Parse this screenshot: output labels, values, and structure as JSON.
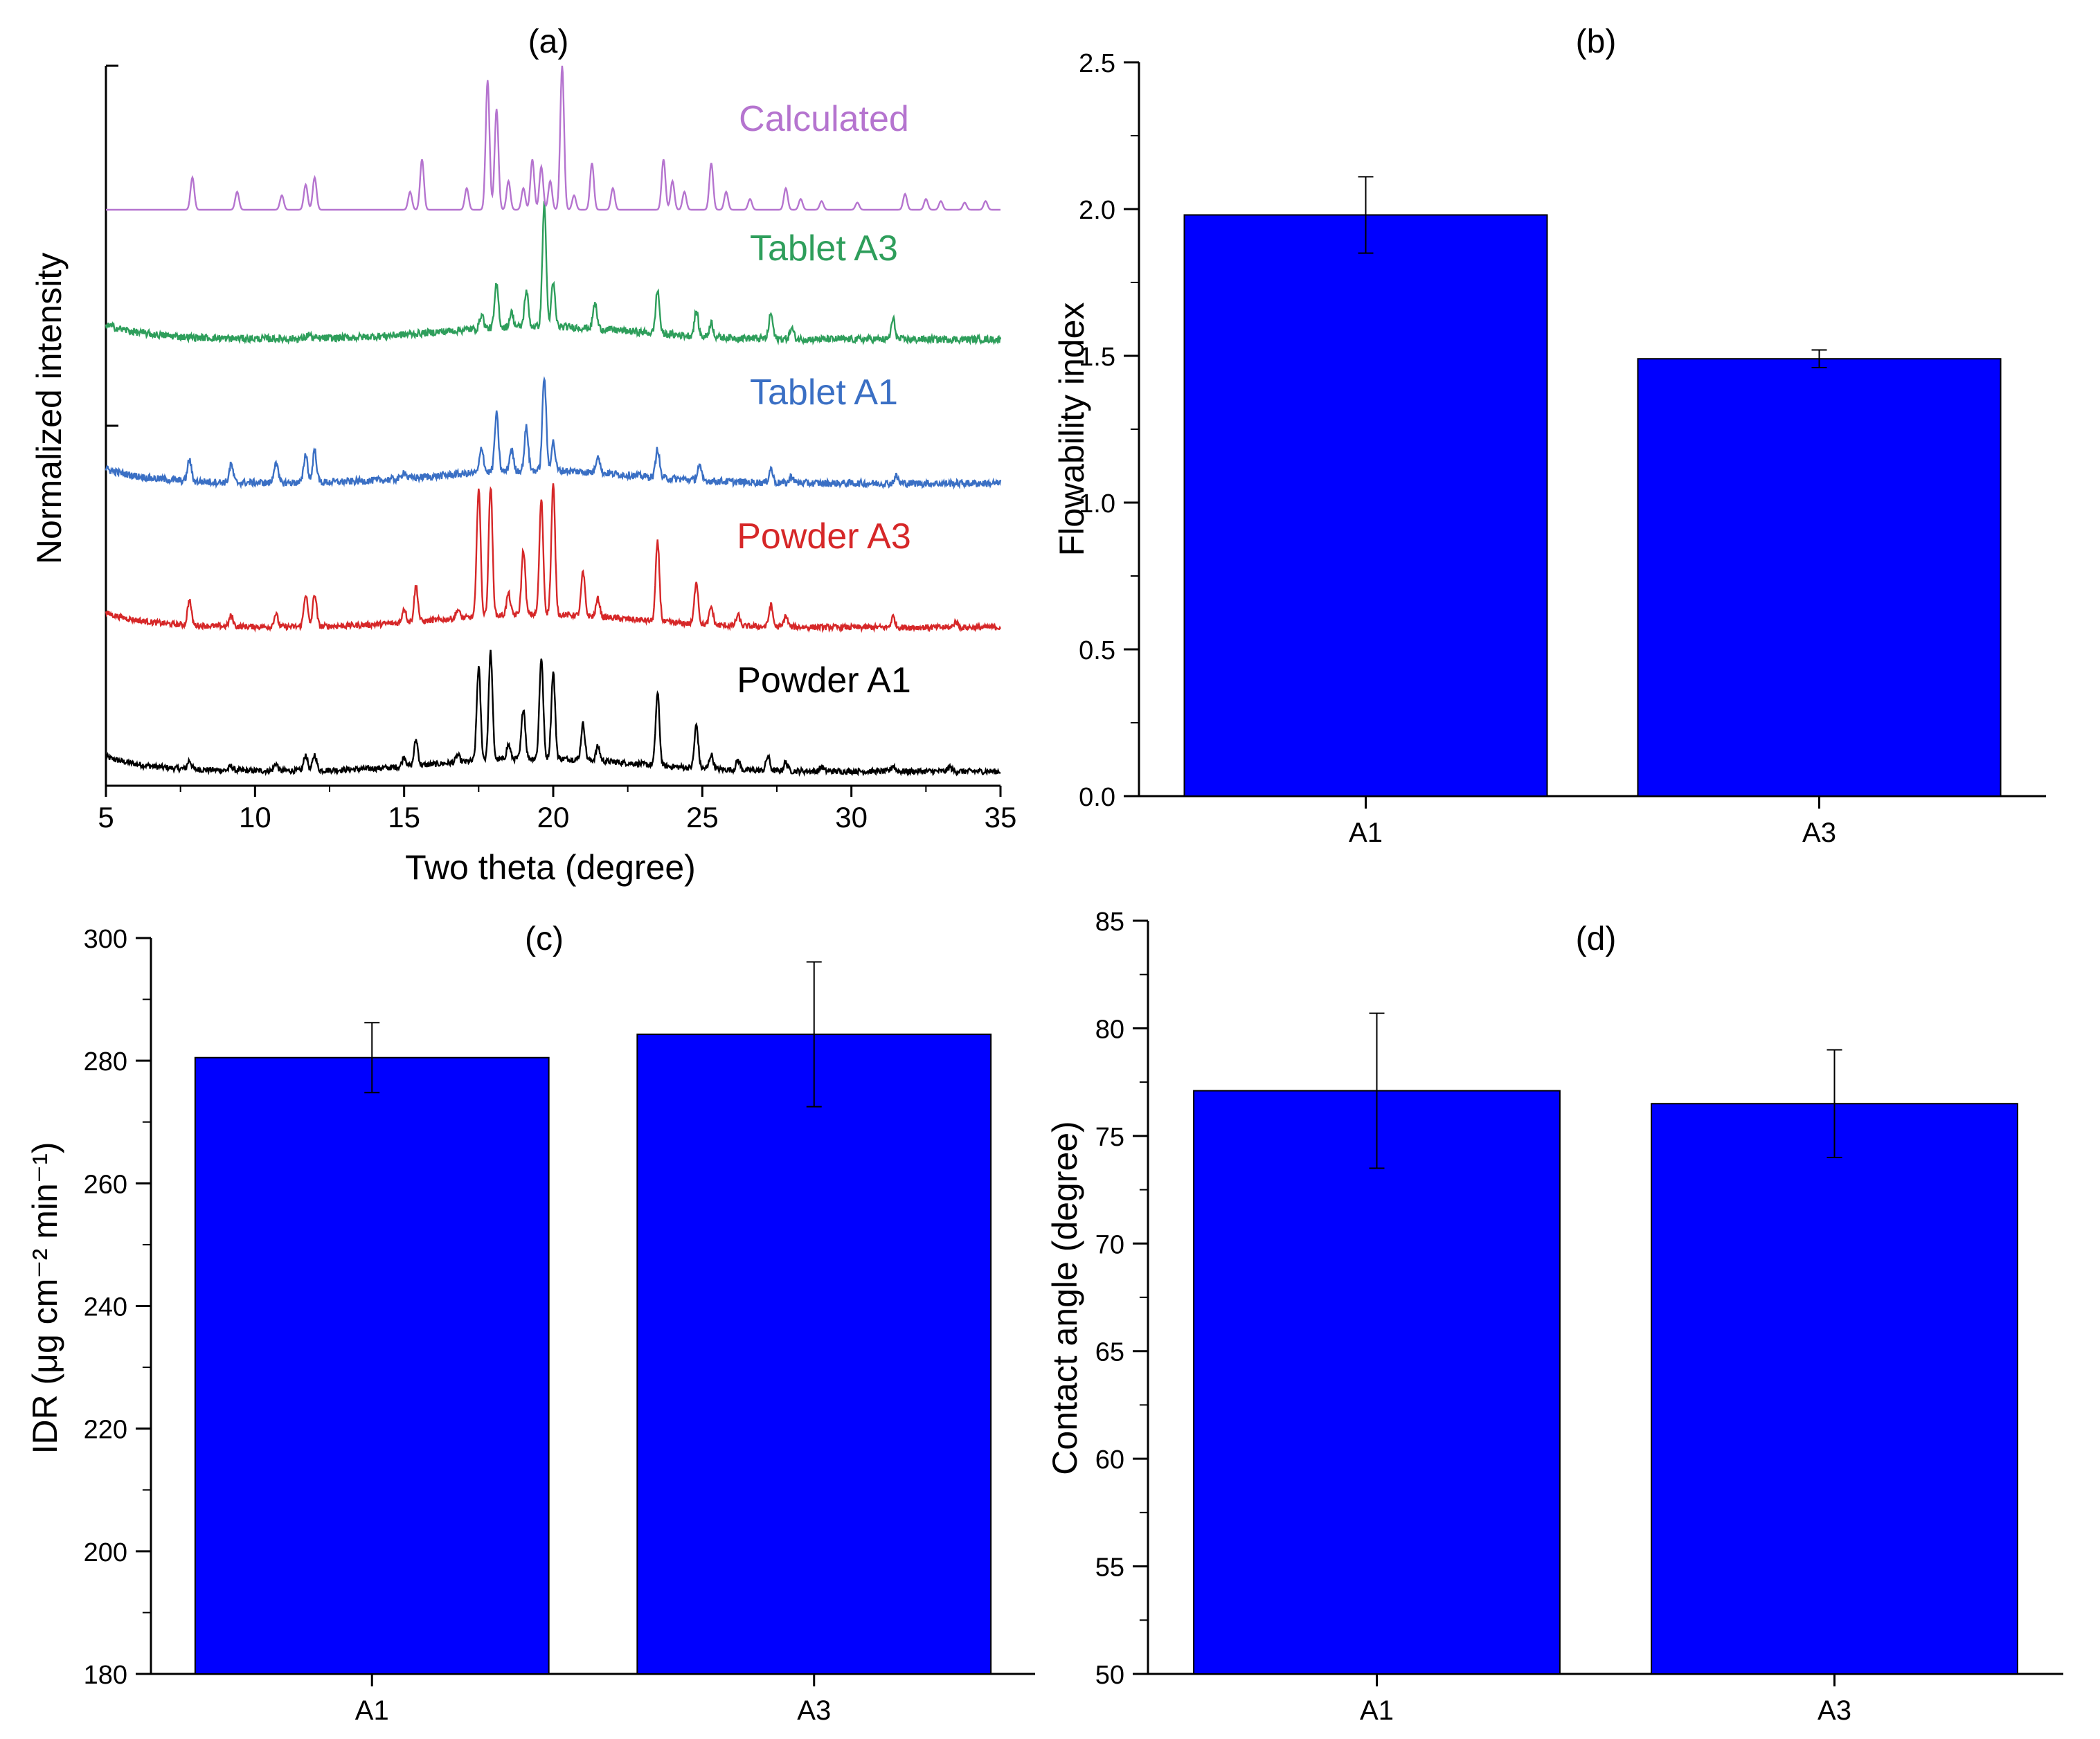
{
  "panels": {
    "a": {
      "label": "(a)"
    },
    "b": {
      "label": "(b)"
    },
    "c": {
      "label": "(c)"
    },
    "d": {
      "label": "(d)"
    }
  },
  "chart_data": [
    {
      "type": "line",
      "panel": "(a)",
      "xlabel": "Two theta (degree)",
      "ylabel": "Normalized intensity",
      "xlim": [
        5,
        35
      ],
      "xticks": [
        "5",
        "10",
        "15",
        "20",
        "25",
        "30",
        "35"
      ],
      "yticks_labeled": false,
      "series": [
        {
          "name": "Powder A1",
          "color": "#000000",
          "baseline": 0.02,
          "noise": 0.004,
          "peaks": [
            [
              7.8,
              0.012
            ],
            [
              9.2,
              0.006
            ],
            [
              10.7,
              0.01
            ],
            [
              11.7,
              0.022
            ],
            [
              12.0,
              0.022
            ],
            [
              15.0,
              0.014
            ],
            [
              15.4,
              0.036
            ],
            [
              16.8,
              0.01
            ],
            [
              17.5,
              0.13
            ],
            [
              17.9,
              0.15
            ],
            [
              18.5,
              0.02
            ],
            [
              19.0,
              0.07
            ],
            [
              19.6,
              0.14
            ],
            [
              20.0,
              0.12
            ],
            [
              21.0,
              0.05
            ],
            [
              21.5,
              0.02
            ],
            [
              23.5,
              0.1
            ],
            [
              24.8,
              0.06
            ],
            [
              25.3,
              0.02
            ],
            [
              26.2,
              0.014
            ],
            [
              27.2,
              0.02
            ],
            [
              27.8,
              0.012
            ],
            [
              29.0,
              0.006
            ],
            [
              31.4,
              0.008
            ],
            [
              33.3,
              0.006
            ]
          ]
        },
        {
          "name": "Powder A3",
          "color": "#d62728",
          "baseline": 0.22,
          "noise": 0.004,
          "peaks": [
            [
              7.8,
              0.035
            ],
            [
              9.2,
              0.015
            ],
            [
              10.7,
              0.018
            ],
            [
              11.7,
              0.045
            ],
            [
              12.0,
              0.045
            ],
            [
              15.0,
              0.02
            ],
            [
              15.4,
              0.05
            ],
            [
              16.8,
              0.012
            ],
            [
              17.5,
              0.18
            ],
            [
              17.9,
              0.18
            ],
            [
              18.5,
              0.03
            ],
            [
              19.0,
              0.09
            ],
            [
              19.6,
              0.16
            ],
            [
              20.0,
              0.18
            ],
            [
              21.0,
              0.06
            ],
            [
              21.5,
              0.025
            ],
            [
              23.5,
              0.11
            ],
            [
              24.8,
              0.06
            ],
            [
              25.3,
              0.025
            ],
            [
              26.2,
              0.015
            ],
            [
              27.3,
              0.03
            ],
            [
              27.8,
              0.015
            ],
            [
              31.4,
              0.015
            ],
            [
              33.5,
              0.008
            ]
          ]
        },
        {
          "name": "Tablet A1",
          "color": "#3a6fc4",
          "baseline": 0.42,
          "noise": 0.005,
          "peaks": [
            [
              7.8,
              0.03
            ],
            [
              9.2,
              0.025
            ],
            [
              10.7,
              0.03
            ],
            [
              11.7,
              0.04
            ],
            [
              12.0,
              0.045
            ],
            [
              15.0,
              0.01
            ],
            [
              17.6,
              0.035
            ],
            [
              18.1,
              0.08
            ],
            [
              18.6,
              0.03
            ],
            [
              19.1,
              0.06
            ],
            [
              19.7,
              0.13
            ],
            [
              20.0,
              0.04
            ],
            [
              21.5,
              0.025
            ],
            [
              23.5,
              0.04
            ],
            [
              24.9,
              0.02
            ],
            [
              27.3,
              0.02
            ],
            [
              28.0,
              0.01
            ],
            [
              31.5,
              0.01
            ]
          ]
        },
        {
          "name": "Tablet A3",
          "color": "#2e9e5b",
          "baseline": 0.62,
          "noise": 0.005,
          "peaks": [
            [
              11.8,
              0.006
            ],
            [
              17.6,
              0.02
            ],
            [
              18.1,
              0.06
            ],
            [
              18.6,
              0.02
            ],
            [
              19.1,
              0.05
            ],
            [
              19.7,
              0.17
            ],
            [
              20.0,
              0.06
            ],
            [
              21.4,
              0.035
            ],
            [
              23.5,
              0.06
            ],
            [
              24.8,
              0.035
            ],
            [
              25.3,
              0.02
            ],
            [
              27.3,
              0.035
            ],
            [
              28.0,
              0.015
            ],
            [
              31.4,
              0.028
            ]
          ]
        },
        {
          "name": "Calculated",
          "color": "#b574cf",
          "baseline": 0.8,
          "noise": 0,
          "peaks": [
            [
              7.9,
              0.045
            ],
            [
              9.4,
              0.025
            ],
            [
              10.9,
              0.02
            ],
            [
              11.7,
              0.035
            ],
            [
              12.0,
              0.045
            ],
            [
              15.2,
              0.025
            ],
            [
              15.6,
              0.07
            ],
            [
              17.1,
              0.03
            ],
            [
              17.8,
              0.18
            ],
            [
              18.1,
              0.14
            ],
            [
              18.5,
              0.04
            ],
            [
              19.0,
              0.03
            ],
            [
              19.3,
              0.07
            ],
            [
              19.6,
              0.06
            ],
            [
              19.9,
              0.04
            ],
            [
              20.3,
              0.2
            ],
            [
              20.7,
              0.02
            ],
            [
              21.3,
              0.065
            ],
            [
              22.0,
              0.03
            ],
            [
              23.7,
              0.07
            ],
            [
              24.0,
              0.04
            ],
            [
              24.4,
              0.025
            ],
            [
              25.3,
              0.065
            ],
            [
              25.8,
              0.025
            ],
            [
              26.6,
              0.015
            ],
            [
              27.8,
              0.03
            ],
            [
              28.3,
              0.015
            ],
            [
              29.0,
              0.012
            ],
            [
              30.2,
              0.01
            ],
            [
              31.8,
              0.022
            ],
            [
              32.5,
              0.015
            ],
            [
              33.0,
              0.012
            ],
            [
              33.8,
              0.01
            ],
            [
              34.5,
              0.012
            ]
          ]
        }
      ]
    },
    {
      "type": "bar",
      "panel": "(b)",
      "categories": [
        "A1",
        "A3"
      ],
      "values": [
        1.98,
        1.49
      ],
      "errors": [
        0.13,
        0.03
      ],
      "ylabel": "Flowability index",
      "ylim": [
        0.0,
        2.5
      ],
      "yticks": [
        "0.0",
        "0.5",
        "1.0",
        "1.5",
        "2.0",
        "2.5"
      ],
      "bar_color": "#0000ff"
    },
    {
      "type": "bar",
      "panel": "(c)",
      "categories": [
        "A1",
        "A3"
      ],
      "values": [
        280.5,
        284.3
      ],
      "errors": [
        5.7,
        11.8
      ],
      "ylabel": "IDR (μg cm⁻² min⁻¹)",
      "ylim": [
        180,
        300
      ],
      "yticks": [
        "180",
        "200",
        "220",
        "240",
        "260",
        "280",
        "300"
      ],
      "bar_color": "#0000ff"
    },
    {
      "type": "bar",
      "panel": "(d)",
      "categories": [
        "A1",
        "A3"
      ],
      "values": [
        77.1,
        76.5
      ],
      "errors": [
        3.6,
        2.5
      ],
      "ylabel": "Contact angle (degree)",
      "ylim": [
        50,
        85
      ],
      "yticks": [
        "50",
        "55",
        "60",
        "65",
        "70",
        "75",
        "80",
        "85"
      ],
      "bar_color": "#0000ff"
    }
  ]
}
